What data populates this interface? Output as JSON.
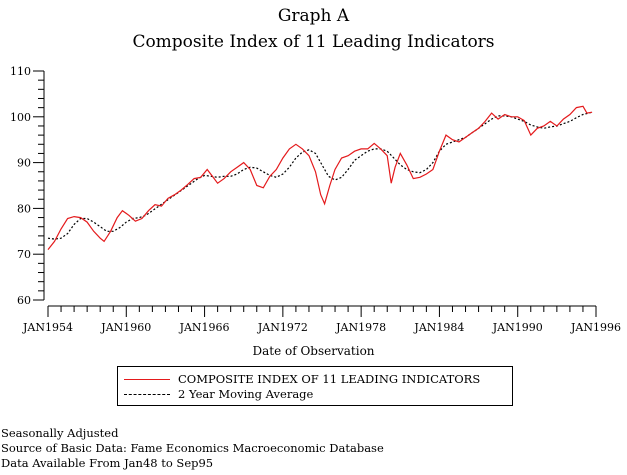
{
  "chart_data": {
    "type": "line",
    "title": "Graph A",
    "subtitle": "Composite Index of 11 Leading Indicators",
    "xlabel": "Date of Observation",
    "ylabel": "",
    "ylim": [
      60,
      110
    ],
    "yticks": [
      60,
      70,
      80,
      90,
      100,
      110
    ],
    "xlim": [
      1954,
      1996
    ],
    "xtick_values": [
      1954,
      1960,
      1966,
      1972,
      1978,
      1984,
      1990,
      1996
    ],
    "xtick_labels": [
      "JAN1954",
      "JAN1960",
      "JAN1966",
      "JAN1972",
      "JAN1978",
      "JAN1984",
      "JAN1990",
      "JAN1996"
    ],
    "grid": false,
    "legend_position": "bottom",
    "series": [
      {
        "name": "COMPOSITE INDEX OF 11 LEADING INDICATORS",
        "color": "#e41a1c",
        "style": "solid",
        "x": [
          1954.0,
          1954.5,
          1955.0,
          1955.5,
          1956.0,
          1956.5,
          1957.0,
          1957.5,
          1958.0,
          1958.3,
          1958.8,
          1959.3,
          1959.7,
          1960.2,
          1960.7,
          1961.2,
          1961.7,
          1962.2,
          1962.7,
          1963.2,
          1963.7,
          1964.2,
          1964.7,
          1965.2,
          1965.7,
          1966.2,
          1966.6,
          1967.0,
          1967.5,
          1968.0,
          1968.5,
          1969.0,
          1969.5,
          1970.0,
          1970.5,
          1971.0,
          1971.5,
          1972.0,
          1972.5,
          1973.0,
          1973.5,
          1974.0,
          1974.5,
          1974.9,
          1975.2,
          1975.6,
          1976.0,
          1976.5,
          1977.0,
          1977.5,
          1978.0,
          1978.5,
          1979.0,
          1979.5,
          1980.0,
          1980.3,
          1980.6,
          1981.0,
          1981.5,
          1982.0,
          1982.5,
          1983.0,
          1983.5,
          1984.0,
          1984.5,
          1985.0,
          1985.5,
          1986.0,
          1986.5,
          1987.0,
          1987.5,
          1988.0,
          1988.5,
          1989.0,
          1989.5,
          1990.0,
          1990.5,
          1991.0,
          1991.5,
          1992.0,
          1992.5,
          1993.0,
          1993.5,
          1994.0,
          1994.5,
          1995.0,
          1995.3,
          1995.7
        ],
        "values": [
          71.0,
          72.8,
          75.5,
          77.8,
          78.2,
          78.0,
          77.0,
          75.0,
          73.5,
          72.8,
          75.0,
          78.0,
          79.5,
          78.5,
          77.2,
          77.8,
          79.5,
          80.8,
          80.5,
          82.2,
          83.0,
          84.0,
          85.2,
          86.5,
          86.8,
          88.5,
          87.0,
          85.5,
          86.5,
          88.0,
          89.0,
          90.0,
          88.5,
          85.0,
          84.5,
          87.0,
          88.5,
          91.0,
          93.0,
          94.0,
          93.0,
          91.5,
          88.0,
          83.0,
          81.0,
          85.0,
          88.5,
          91.0,
          91.5,
          92.5,
          93.0,
          93.0,
          94.2,
          93.0,
          91.5,
          85.5,
          89.0,
          92.0,
          89.5,
          86.5,
          86.8,
          87.5,
          88.5,
          92.5,
          96.0,
          95.0,
          94.5,
          95.5,
          96.5,
          97.5,
          99.0,
          100.8,
          99.5,
          100.5,
          100.0,
          100.0,
          99.2,
          96.0,
          97.5,
          98.0,
          99.0,
          98.0,
          99.5,
          100.5,
          102.0,
          102.3,
          100.8,
          101.0
        ]
      },
      {
        "name": "2 Year Moving Average",
        "color": "#000000",
        "style": "dashed",
        "x": [
          1954.0,
          1954.5,
          1955.0,
          1955.5,
          1956.0,
          1956.5,
          1957.0,
          1957.5,
          1958.0,
          1958.5,
          1959.0,
          1959.5,
          1960.0,
          1960.5,
          1961.0,
          1961.5,
          1962.0,
          1962.5,
          1963.0,
          1963.5,
          1964.0,
          1964.5,
          1965.0,
          1965.5,
          1966.0,
          1966.5,
          1967.0,
          1967.5,
          1968.0,
          1968.5,
          1969.0,
          1969.5,
          1970.0,
          1970.5,
          1971.0,
          1971.5,
          1972.0,
          1972.5,
          1973.0,
          1973.5,
          1974.0,
          1974.5,
          1975.0,
          1975.5,
          1976.0,
          1976.5,
          1977.0,
          1977.5,
          1978.0,
          1978.5,
          1979.0,
          1979.5,
          1980.0,
          1980.5,
          1981.0,
          1981.5,
          1982.0,
          1982.5,
          1983.0,
          1983.5,
          1984.0,
          1984.5,
          1985.0,
          1985.5,
          1986.0,
          1986.5,
          1987.0,
          1987.5,
          1988.0,
          1988.5,
          1989.0,
          1989.5,
          1990.0,
          1990.5,
          1991.0,
          1991.5,
          1992.0,
          1992.5,
          1993.0,
          1993.5,
          1994.0,
          1994.5,
          1995.0,
          1995.7
        ],
        "values": [
          73.5,
          73.3,
          73.5,
          74.5,
          76.5,
          77.8,
          77.8,
          77.0,
          76.0,
          75.0,
          75.0,
          75.8,
          77.0,
          77.8,
          78.0,
          78.5,
          79.5,
          80.5,
          81.5,
          82.5,
          83.5,
          84.5,
          85.5,
          86.5,
          87.2,
          87.0,
          86.8,
          87.0,
          87.0,
          87.5,
          88.5,
          89.0,
          88.8,
          88.0,
          87.2,
          86.8,
          87.5,
          89.0,
          91.0,
          92.3,
          92.8,
          92.0,
          89.5,
          87.0,
          86.2,
          86.8,
          88.5,
          90.5,
          91.5,
          92.5,
          93.0,
          93.0,
          92.5,
          91.0,
          89.5,
          88.5,
          88.0,
          87.8,
          88.5,
          90.0,
          92.5,
          94.0,
          94.5,
          95.0,
          95.5,
          96.5,
          97.5,
          98.5,
          99.5,
          100.2,
          100.2,
          100.0,
          99.5,
          99.0,
          98.2,
          97.8,
          97.5,
          97.8,
          98.0,
          98.5,
          99.0,
          99.8,
          100.5,
          101.0
        ]
      }
    ]
  },
  "legend": {
    "items": [
      {
        "label": "COMPOSITE INDEX OF 11 LEADING INDICATORS"
      },
      {
        "label": "2 Year Moving Average"
      }
    ]
  },
  "notes": [
    "Seasonally Adjusted",
    "Source of Basic Data: Fame Economics Macroeconomic Database",
    "Data Available From Jan48 to Sep95"
  ]
}
